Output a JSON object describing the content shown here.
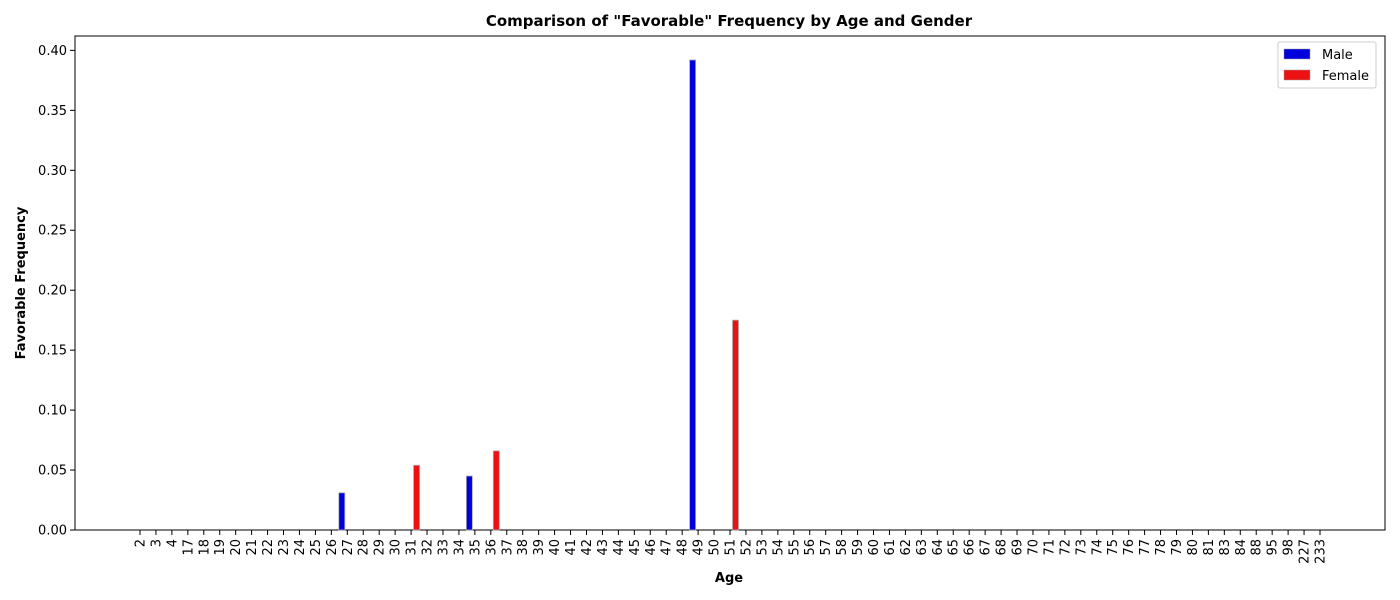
{
  "chart_data": {
    "type": "bar",
    "title": "Comparison of \"Favorable\" Frequency by Age and Gender",
    "xlabel": "Age",
    "ylabel": "Favorable Frequency",
    "ylim": [
      0,
      0.412
    ],
    "yticks": [
      "0.00",
      "0.05",
      "0.10",
      "0.15",
      "0.20",
      "0.25",
      "0.30",
      "0.35",
      "0.40"
    ],
    "grid": false,
    "legend_position": "top-right",
    "categories": [
      "2",
      "3",
      "4",
      "17",
      "18",
      "19",
      "20",
      "21",
      "22",
      "23",
      "24",
      "25",
      "26",
      "27",
      "28",
      "29",
      "30",
      "31",
      "32",
      "33",
      "34",
      "35",
      "36",
      "37",
      "38",
      "39",
      "40",
      "41",
      "42",
      "43",
      "44",
      "45",
      "46",
      "47",
      "48",
      "49",
      "50",
      "51",
      "52",
      "53",
      "54",
      "55",
      "56",
      "57",
      "58",
      "59",
      "60",
      "61",
      "62",
      "63",
      "64",
      "65",
      "66",
      "67",
      "68",
      "69",
      "70",
      "71",
      "72",
      "73",
      "74",
      "75",
      "76",
      "77",
      "78",
      "79",
      "80",
      "81",
      "83",
      "84",
      "88",
      "95",
      "98",
      "227",
      "233"
    ],
    "series": [
      {
        "name": "Male",
        "color": "#0000dd",
        "points": [
          {
            "x": "27",
            "y": 0.031
          },
          {
            "x": "35",
            "y": 0.045
          },
          {
            "x": "49",
            "y": 0.392
          }
        ]
      },
      {
        "name": "Female",
        "color": "#ee1111",
        "points": [
          {
            "x": "31",
            "y": 0.054
          },
          {
            "x": "36",
            "y": 0.066
          },
          {
            "x": "51",
            "y": 0.175
          }
        ]
      }
    ]
  }
}
